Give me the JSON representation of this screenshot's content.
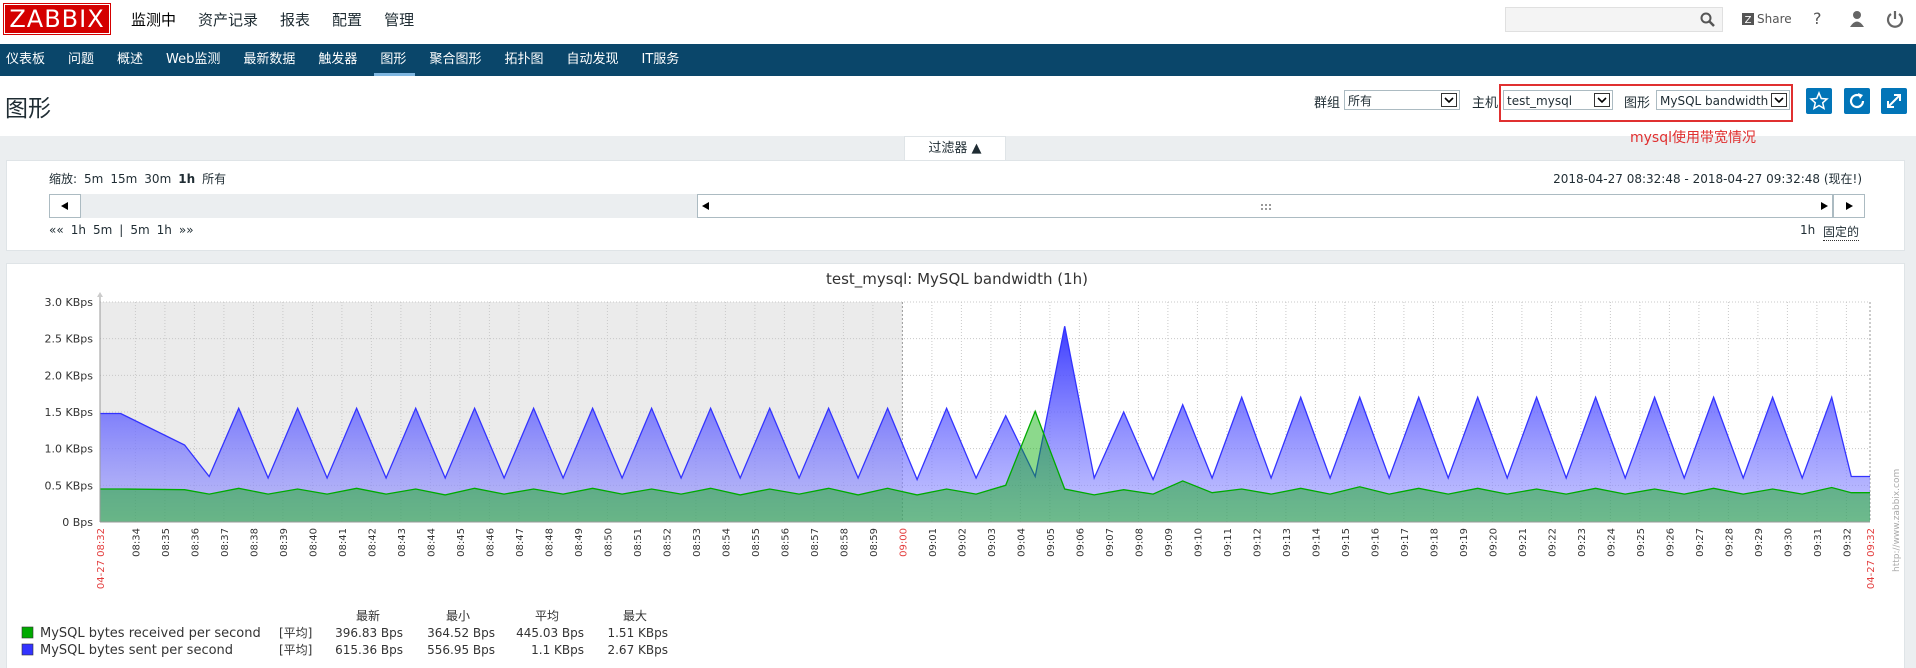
{
  "header": {
    "logo": "ZABBIX",
    "menu": [
      "监测中",
      "资产记录",
      "报表",
      "配置",
      "管理"
    ],
    "share": "Share",
    "help": "?"
  },
  "nav": [
    "仪表板",
    "问题",
    "概述",
    "Web监测",
    "最新数据",
    "触发器",
    "图形",
    "聚合图形",
    "拓扑图",
    "自动发现",
    "IT服务"
  ],
  "page": {
    "title": "图形",
    "group_label": "群组",
    "group": "所有",
    "host_label": "主机",
    "host": "test_mysql",
    "graph_label": "图形",
    "graph": "MySQL bandwidth",
    "annotation": "mysql使用带宽情况"
  },
  "filter": {
    "tab": "过滤器 ▲",
    "zoom_label": "缩放:",
    "zoom": [
      "5m",
      "15m",
      "30m",
      "1h",
      "所有"
    ],
    "range": "2018-04-27 08:32:48 - 2018-04-27 09:32:48 (现在!)",
    "periods": [
      "««",
      "1h",
      "5m",
      "|",
      "5m",
      "1h",
      "»»"
    ],
    "period": "1h",
    "mode": "固定的"
  },
  "chart_data": {
    "type": "area",
    "title": "test_mysql: MySQL bandwidth (1h)",
    "watermark": "http://www.zabbix.com",
    "grid": true,
    "x": [
      "08:32:48",
      "08:33:30",
      "08:35:40",
      "08:36:30",
      "08:37:30",
      "08:38:30",
      "08:39:30",
      "08:40:30",
      "08:41:30",
      "08:42:30",
      "08:43:30",
      "08:44:30",
      "08:45:30",
      "08:46:30",
      "08:47:30",
      "08:48:30",
      "08:49:30",
      "08:50:30",
      "08:51:30",
      "08:52:30",
      "08:53:30",
      "08:54:30",
      "08:55:30",
      "08:56:30",
      "08:57:30",
      "08:58:30",
      "08:59:30",
      "09:00:30",
      "09:01:30",
      "09:02:30",
      "09:03:30",
      "09:04:30",
      "09:05:30",
      "09:06:30",
      "09:07:30",
      "09:08:30",
      "09:09:30",
      "09:10:30",
      "09:11:30",
      "09:12:30",
      "09:13:30",
      "09:14:30",
      "09:15:30",
      "09:16:30",
      "09:17:30",
      "09:18:30",
      "09:19:30",
      "09:20:30",
      "09:21:30",
      "09:22:30",
      "09:23:30",
      "09:24:30",
      "09:25:30",
      "09:26:30",
      "09:27:30",
      "09:28:30",
      "09:29:30",
      "09:30:30",
      "09:31:30",
      "09:32:10",
      "09:32:48"
    ],
    "series": [
      {
        "name": "MySQL bytes received per second",
        "color": "#00aa00",
        "function": "[平均]",
        "legend_values": [
          "396.83 Bps",
          "364.52 Bps",
          "445.03 Bps",
          "1.51 KBps"
        ],
        "values": [
          0.45,
          0.45,
          0.44,
          0.38,
          0.46,
          0.38,
          0.45,
          0.38,
          0.46,
          0.38,
          0.45,
          0.37,
          0.46,
          0.38,
          0.45,
          0.38,
          0.46,
          0.38,
          0.45,
          0.38,
          0.46,
          0.37,
          0.45,
          0.38,
          0.46,
          0.37,
          0.46,
          0.37,
          0.45,
          0.38,
          0.5,
          1.51,
          0.45,
          0.37,
          0.44,
          0.38,
          0.56,
          0.4,
          0.45,
          0.38,
          0.46,
          0.38,
          0.48,
          0.38,
          0.46,
          0.38,
          0.46,
          0.38,
          0.45,
          0.38,
          0.46,
          0.38,
          0.45,
          0.38,
          0.46,
          0.38,
          0.45,
          0.38,
          0.47,
          0.4,
          0.4
        ]
      },
      {
        "name": "MySQL bytes sent per second",
        "color": "#3333ff",
        "function": "[平均]",
        "legend_values": [
          "615.36 Bps",
          "556.95 Bps",
          "1.1 KBps",
          "2.67 KBps"
        ],
        "values": [
          1.48,
          1.48,
          1.05,
          0.62,
          1.55,
          0.6,
          1.55,
          0.6,
          1.55,
          0.6,
          1.55,
          0.6,
          1.55,
          0.6,
          1.55,
          0.6,
          1.55,
          0.6,
          1.55,
          0.6,
          1.55,
          0.6,
          1.55,
          0.6,
          1.55,
          0.6,
          1.55,
          0.58,
          1.55,
          0.6,
          1.45,
          0.62,
          2.67,
          0.6,
          1.5,
          0.58,
          1.6,
          0.6,
          1.7,
          0.6,
          1.7,
          0.6,
          1.7,
          0.6,
          1.7,
          0.6,
          1.7,
          0.6,
          1.7,
          0.6,
          1.7,
          0.6,
          1.7,
          0.6,
          1.7,
          0.6,
          1.7,
          0.6,
          1.7,
          0.62,
          0.62
        ]
      }
    ],
    "legend_columns": [
      "最新",
      "最小",
      "平均",
      "最大"
    ],
    "xlim": [
      "08:32:48",
      "09:32:48"
    ],
    "ylim": [
      0,
      3
    ],
    "yticks": [
      {
        "value": 0,
        "label": "0 Bps"
      },
      {
        "value": 0.5,
        "label": "0.5 KBps"
      },
      {
        "value": 1,
        "label": "1.0 KBps"
      },
      {
        "value": 1.5,
        "label": "1.5 KBps"
      },
      {
        "value": 2,
        "label": "2.0 KBps"
      },
      {
        "value": 2.5,
        "label": "2.5 KBps"
      },
      {
        "value": 3,
        "label": "3.0 KBps"
      }
    ],
    "xticks": [
      {
        "value": "08:32:48",
        "label": "04-27 08:32",
        "color": "#e33e3e"
      },
      {
        "value": "08:34:00",
        "label": "08:34"
      },
      {
        "value": "08:35:00",
        "label": "08:35"
      },
      {
        "value": "08:36:00",
        "label": "08:36"
      },
      {
        "value": "08:37:00",
        "label": "08:37"
      },
      {
        "value": "08:38:00",
        "label": "08:38"
      },
      {
        "value": "08:39:00",
        "label": "08:39"
      },
      {
        "value": "08:40:00",
        "label": "08:40"
      },
      {
        "value": "08:41:00",
        "label": "08:41"
      },
      {
        "value": "08:42:00",
        "label": "08:42"
      },
      {
        "value": "08:43:00",
        "label": "08:43"
      },
      {
        "value": "08:44:00",
        "label": "08:44"
      },
      {
        "value": "08:45:00",
        "label": "08:45"
      },
      {
        "value": "08:46:00",
        "label": "08:46"
      },
      {
        "value": "08:47:00",
        "label": "08:47"
      },
      {
        "value": "08:48:00",
        "label": "08:48"
      },
      {
        "value": "08:49:00",
        "label": "08:49"
      },
      {
        "value": "08:50:00",
        "label": "08:50"
      },
      {
        "value": "08:51:00",
        "label": "08:51"
      },
      {
        "value": "08:52:00",
        "label": "08:52"
      },
      {
        "value": "08:53:00",
        "label": "08:53"
      },
      {
        "value": "08:54:00",
        "label": "08:54"
      },
      {
        "value": "08:55:00",
        "label": "08:55"
      },
      {
        "value": "08:56:00",
        "label": "08:56"
      },
      {
        "value": "08:57:00",
        "label": "08:57"
      },
      {
        "value": "08:58:00",
        "label": "08:58"
      },
      {
        "value": "08:59:00",
        "label": "08:59"
      },
      {
        "value": "09:00:00",
        "label": "09:00",
        "color": "#e33e3e"
      },
      {
        "value": "09:01:00",
        "label": "09:01"
      },
      {
        "value": "09:02:00",
        "label": "09:02"
      },
      {
        "value": "09:03:00",
        "label": "09:03"
      },
      {
        "value": "09:04:00",
        "label": "09:04"
      },
      {
        "value": "09:05:00",
        "label": "09:05"
      },
      {
        "value": "09:06:00",
        "label": "09:06"
      },
      {
        "value": "09:07:00",
        "label": "09:07"
      },
      {
        "value": "09:08:00",
        "label": "09:08"
      },
      {
        "value": "09:09:00",
        "label": "09:09"
      },
      {
        "value": "09:10:00",
        "label": "09:10"
      },
      {
        "value": "09:11:00",
        "label": "09:11"
      },
      {
        "value": "09:12:00",
        "label": "09:12"
      },
      {
        "value": "09:13:00",
        "label": "09:13"
      },
      {
        "value": "09:14:00",
        "label": "09:14"
      },
      {
        "value": "09:15:00",
        "label": "09:15"
      },
      {
        "value": "09:16:00",
        "label": "09:16"
      },
      {
        "value": "09:17:00",
        "label": "09:17"
      },
      {
        "value": "09:18:00",
        "label": "09:18"
      },
      {
        "value": "09:19:00",
        "label": "09:19"
      },
      {
        "value": "09:20:00",
        "label": "09:20"
      },
      {
        "value": "09:21:00",
        "label": "09:21"
      },
      {
        "value": "09:22:00",
        "label": "09:22"
      },
      {
        "value": "09:23:00",
        "label": "09:23"
      },
      {
        "value": "09:24:00",
        "label": "09:24"
      },
      {
        "value": "09:25:00",
        "label": "09:25"
      },
      {
        "value": "09:26:00",
        "label": "09:26"
      },
      {
        "value": "09:27:00",
        "label": "09:27"
      },
      {
        "value": "09:28:00",
        "label": "09:28"
      },
      {
        "value": "09:29:00",
        "label": "09:29"
      },
      {
        "value": "09:30:00",
        "label": "09:30"
      },
      {
        "value": "09:31:00",
        "label": "09:31"
      },
      {
        "value": "09:32:00",
        "label": "09:32"
      },
      {
        "value": "09:32:48",
        "label": "04-27 09:32",
        "color": "#e33e3e"
      }
    ]
  }
}
